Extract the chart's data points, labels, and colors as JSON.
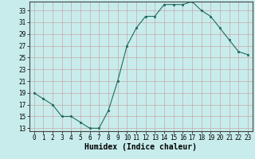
{
  "xlabel": "Humidex (Indice chaleur)",
  "x": [
    0,
    1,
    2,
    3,
    4,
    5,
    6,
    7,
    8,
    9,
    10,
    11,
    12,
    13,
    14,
    15,
    16,
    17,
    18,
    19,
    20,
    21,
    22,
    23
  ],
  "y": [
    19,
    18,
    17,
    15,
    15,
    14,
    13,
    13,
    16,
    21,
    27,
    30,
    32,
    32,
    34,
    34,
    34,
    34.5,
    33,
    32,
    30,
    28,
    26,
    25.5
  ],
  "line_color": "#1e6b5e",
  "bg_color": "#c8ecec",
  "grid_color": "#c8a8a8",
  "ylim_min": 12.5,
  "ylim_max": 34.5,
  "xlim_min": -0.5,
  "xlim_max": 23.5,
  "yticks": [
    13,
    15,
    17,
    19,
    21,
    23,
    25,
    27,
    29,
    31,
    33
  ],
  "xticks": [
    0,
    1,
    2,
    3,
    4,
    5,
    6,
    7,
    8,
    9,
    10,
    11,
    12,
    13,
    14,
    15,
    16,
    17,
    18,
    19,
    20,
    21,
    22,
    23
  ],
  "tick_fontsize": 5.5,
  "xlabel_fontsize": 7.0
}
